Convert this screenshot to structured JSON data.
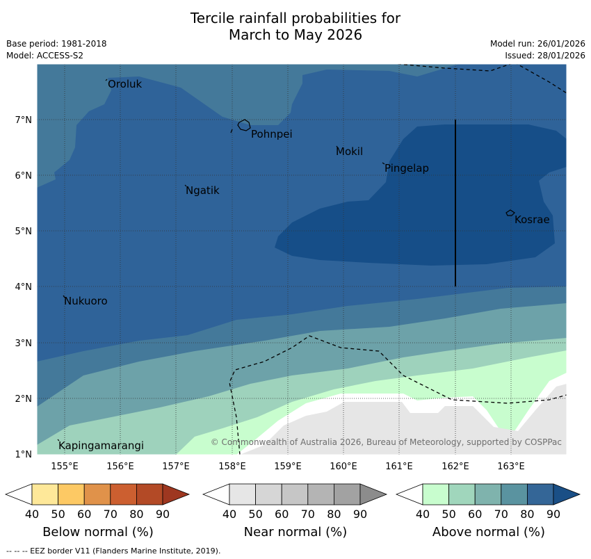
{
  "header": {
    "title_line1": "Tercile rainfall probabilities for",
    "title_line2": "March to May 2026",
    "base_period": "Base period: 1981-2018",
    "model": "Model: ACCESS-S2",
    "model_run": "Model run: 26/01/2026",
    "issued": "Issued: 28/01/2026"
  },
  "map": {
    "lat_labels": [
      "7°N",
      "6°N",
      "5°N",
      "4°N",
      "3°N",
      "2°N",
      "1°N"
    ],
    "lon_labels": [
      "155°E",
      "156°E",
      "157°E",
      "158°E",
      "159°E",
      "160°E",
      "161°E",
      "162°E",
      "163°E"
    ],
    "places": [
      {
        "name": "Oroluk"
      },
      {
        "name": "Pohnpei"
      },
      {
        "name": "Mokil"
      },
      {
        "name": "Pingelap"
      },
      {
        "name": "Ngatik"
      },
      {
        "name": "Kosrae"
      },
      {
        "name": "Nukuoro"
      },
      {
        "name": "Kapingamarangi"
      }
    ],
    "copyright": "© Commonwealth of Australia 2026, Bureau of Meteorology, supported by COSPPac"
  },
  "legend": {
    "below": {
      "label": "Below normal (%)",
      "colors": [
        "#fee899",
        "#fdc964",
        "#e0924a",
        "#cc5f30",
        "#b34a26",
        "#9e3720"
      ],
      "ticks": [
        "40",
        "50",
        "60",
        "70",
        "80",
        "90"
      ]
    },
    "near": {
      "label": "Near normal (%)",
      "colors": [
        "#e6e6e6",
        "#d6d6d6",
        "#c6c6c6",
        "#b4b4b4",
        "#a2a2a2",
        "#8c8c8c"
      ],
      "ticks": [
        "40",
        "50",
        "60",
        "70",
        "80",
        "90"
      ]
    },
    "above": {
      "label": "Above normal (%)",
      "colors": [
        "#c8fdce",
        "#a0d6bc",
        "#7fb3ad",
        "#5a93a0",
        "#346697",
        "#1a4f86"
      ],
      "ticks": [
        "40",
        "50",
        "60",
        "70",
        "80",
        "90"
      ]
    }
  },
  "footnote": "--  --  -- EEZ border V11 (Flanders Marine Institute, 2019)."
}
